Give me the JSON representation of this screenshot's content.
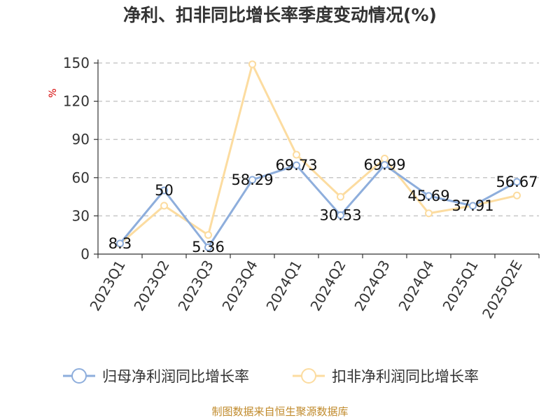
{
  "chart_data": {
    "type": "line",
    "title": "净利、扣非同比增长率季度变动情况(%)",
    "ylabel": "%",
    "ylim": [
      0,
      150
    ],
    "yticks": [
      0,
      30,
      60,
      90,
      120,
      150
    ],
    "grid": true,
    "legend_position": "bottom",
    "categories": [
      "2023Q1",
      "2023Q2",
      "2023Q3",
      "2023Q4",
      "2024Q1",
      "2024Q2",
      "2024Q3",
      "2024Q4",
      "2025Q1",
      "2025Q2E"
    ],
    "series": [
      {
        "name": "归母净利润同比增长率",
        "color": "#8eaedc",
        "values": [
          8.3,
          50,
          5.36,
          58.29,
          69.73,
          30.53,
          69.99,
          45.69,
          37.91,
          56.67
        ],
        "labels": [
          "8.3",
          "50",
          "5.36",
          "58.29",
          "69.73",
          "30.53",
          "69.99",
          "45.69",
          "37.91",
          "56.67"
        ]
      },
      {
        "name": "扣非净利润同比增长率",
        "color": "#fcdca0",
        "values": [
          8,
          38,
          15,
          149,
          78,
          45,
          75,
          32,
          38,
          46
        ]
      }
    ],
    "source": "制图数据来自恒生聚源数据库"
  }
}
